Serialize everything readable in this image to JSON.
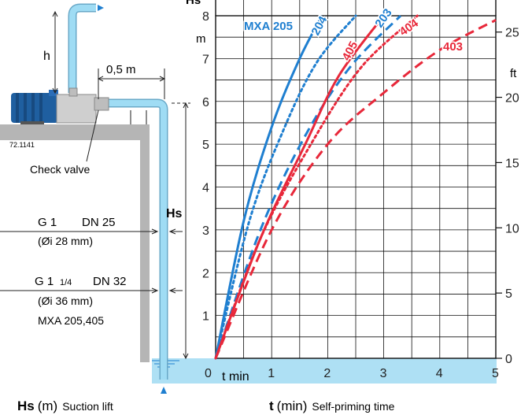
{
  "header_clip": "Hs",
  "colors": {
    "blue": "#1f7fd0",
    "red": "#e8283a",
    "water": "#aee0f4",
    "grid": "#111111",
    "pipe": "#8fd4f0",
    "wall": "#b5b5b5"
  },
  "diagram": {
    "h_label": "h",
    "distance_label": "0,5 m",
    "model_code": "72.1141",
    "check_valve": "Check valve",
    "hs_label": "Hs",
    "pipe1_thread": "G 1",
    "pipe1_dn": "DN 25",
    "pipe1_dia": "(Øi 28 mm)",
    "pipe2_thread": "G 1",
    "pipe2_thread_frac": "1/4",
    "pipe2_dn": "DN 32",
    "pipe2_dia": "(Øi 36 mm)",
    "pipe2_models": "MXA 205,405"
  },
  "footer": {
    "hs_symbol": "Hs",
    "hs_unit": "(m)",
    "hs_caption": "Suction lift",
    "t_symbol": "t",
    "t_unit": "(min)",
    "t_caption": "Self-priming time"
  },
  "chart_data": {
    "type": "line",
    "xlabel": "t min",
    "ylabel_left_unit": "m",
    "ylabel_right_unit": "ft",
    "xlim": [
      0,
      5
    ],
    "ylim": [
      0,
      8
    ],
    "y2lim_ft": [
      0,
      26.25
    ],
    "x_ticks": [
      "0",
      "1",
      "2",
      "3",
      "4",
      "5"
    ],
    "y_ticks": [
      "1",
      "2",
      "3",
      "4",
      "5",
      "6",
      "7",
      "8"
    ],
    "y2_ticks": [
      "0",
      "5",
      "10",
      "15",
      "20",
      "25"
    ],
    "grid": true,
    "series": [
      {
        "name": "MXA 205",
        "color": "blue",
        "dash": "solid",
        "x": [
          0,
          0.5,
          1.0,
          1.5,
          1.9
        ],
        "y": [
          0,
          3.2,
          5.4,
          7.0,
          8.0
        ]
      },
      {
        "name": "204",
        "color": "blue",
        "dash": "dot",
        "x": [
          0,
          0.6,
          1.2,
          1.8,
          2.5
        ],
        "y": [
          0,
          3.2,
          5.3,
          6.9,
          8.0
        ]
      },
      {
        "name": "203",
        "color": "blue",
        "dash": "dash",
        "x": [
          0,
          0.8,
          1.6,
          2.4,
          3.3
        ],
        "y": [
          0,
          3.0,
          5.2,
          6.8,
          8.0
        ]
      },
      {
        "name": "405",
        "color": "red",
        "dash": "solid",
        "x": [
          0,
          0.8,
          1.6,
          2.2,
          3.0
        ],
        "y": [
          0,
          2.8,
          5.0,
          6.6,
          8.0
        ]
      },
      {
        "name": "404",
        "color": "red",
        "dash": "dot",
        "x": [
          0,
          0.8,
          1.7,
          2.6,
          3.6
        ],
        "y": [
          0,
          2.8,
          5.0,
          6.8,
          8.0
        ]
      },
      {
        "name": "403",
        "color": "red",
        "dash": "dash",
        "x": [
          0,
          1.0,
          2.0,
          3.0,
          4.0,
          5.0
        ],
        "y": [
          0,
          3.0,
          5.0,
          6.2,
          7.2,
          7.9
        ]
      }
    ]
  }
}
